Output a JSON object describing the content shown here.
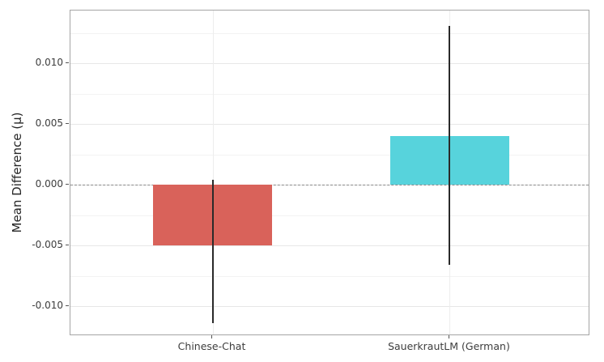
{
  "chart_data": {
    "type": "bar",
    "title": "",
    "xlabel": "",
    "ylabel": "Mean Difference (μ)",
    "categories": [
      "Chinese-Chat",
      "SauerkrautLM (German)"
    ],
    "values": [
      -0.005,
      0.004
    ],
    "error_low": [
      -0.0114,
      -0.0066
    ],
    "error_high": [
      0.0004,
      0.0131
    ],
    "bar_colors": [
      "#d9625a",
      "#57d3dc"
    ],
    "y_ticks": [
      0.01,
      0.005,
      0.0,
      -0.005,
      -0.01
    ],
    "y_tick_labels": [
      "0.010",
      "0.005",
      "0.000",
      "-0.005",
      "-0.010"
    ],
    "layout": {
      "ylim": [
        -0.01245,
        0.01435
      ],
      "y_minor_step": 0.0025,
      "bar_center_frac": [
        0.2734,
        0.7297
      ],
      "bar_width_frac": 0.229,
      "grid": "horizontal major + minor, faint vertical at category centers",
      "zero_line": "dashed",
      "legend": "none"
    },
    "colors": {
      "major_grid": "#e7e7e7",
      "minor_grid": "#f3f3f3",
      "vertical_grid": "#ededed",
      "spine": "#a5a5a5",
      "error_bar": "#2a2a2a",
      "zero_line": "#8a8a8a",
      "tick_label": "#3d3d3d",
      "axis_label": "#262626"
    }
  }
}
